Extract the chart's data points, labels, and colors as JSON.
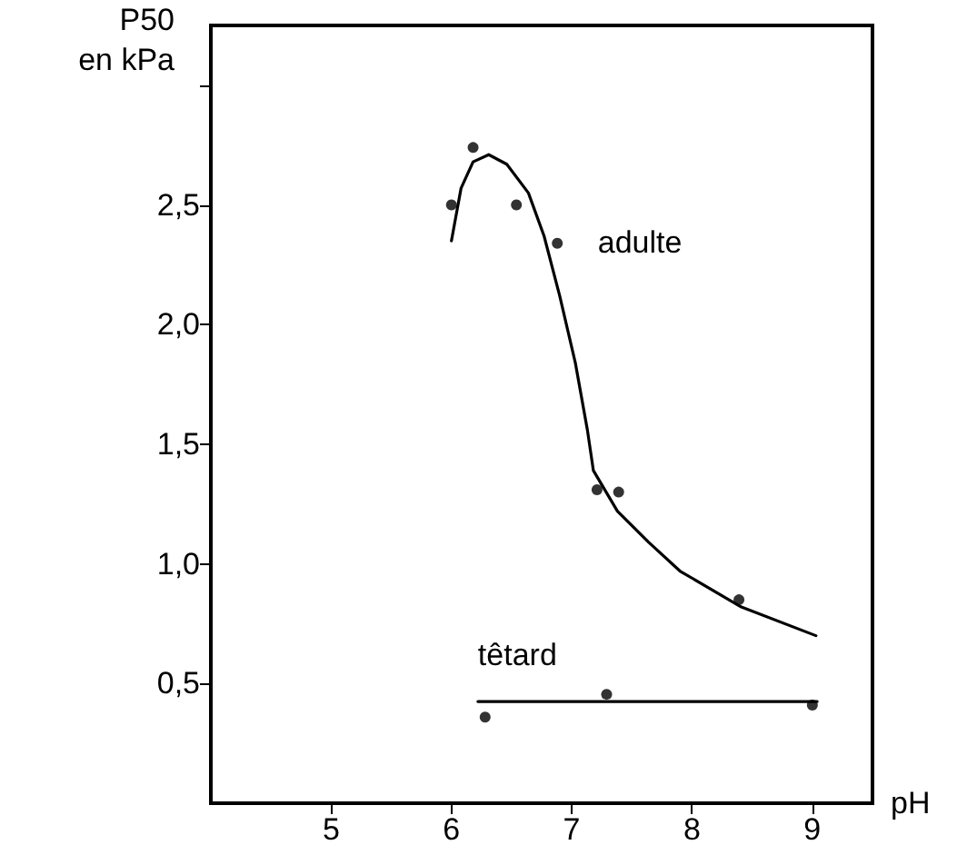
{
  "chart_data": {
    "type": "line",
    "xlabel": "pH",
    "ylabel": "P50\nen kPa",
    "xlim": [
      4,
      9.5
    ],
    "xticks": [
      5,
      6,
      7,
      8,
      9
    ],
    "ylim": [
      0,
      3.25
    ],
    "yticks": [
      {
        "value": 0.5,
        "label": "0,5"
      },
      {
        "value": 1,
        "label": "1,0"
      },
      {
        "value": 1.5,
        "label": "1,5"
      },
      {
        "value": 2,
        "label": "2,0"
      },
      {
        "value": 2.5,
        "label": "2,5"
      },
      {
        "value": 3,
        "label": null
      }
    ],
    "grid": false,
    "legend": false,
    "series": [
      {
        "type": "line",
        "name": "adulte",
        "color": "#000000",
        "marker": "none",
        "line_style": "solid",
        "x": [
          6.0,
          6.08,
          6.18,
          6.31,
          6.46,
          6.64,
          6.77,
          6.9,
          7.03,
          7.13,
          7.18,
          7.38,
          7.64,
          7.9,
          8.41,
          9.03
        ],
        "values": [
          2.35,
          2.57,
          2.68,
          2.71,
          2.67,
          2.55,
          2.37,
          2.12,
          1.84,
          1.56,
          1.39,
          1.22,
          1.09,
          0.97,
          0.82,
          0.7
        ]
      },
      {
        "type": "scatter",
        "color": "#000000",
        "marker": "circle",
        "x": [
          6.0,
          6.18,
          6.54,
          6.88,
          7.21,
          7.39,
          8.39
        ],
        "values": [
          2.5,
          2.74,
          2.5,
          2.34,
          1.31,
          1.3,
          0.85
        ]
      },
      {
        "type": "line",
        "name": "têtard",
        "color": "#000000",
        "marker": "none",
        "line_style": "solid",
        "x": [
          6.22,
          9.04
        ],
        "values": [
          0.425,
          0.425
        ]
      },
      {
        "type": "scatter",
        "color": "#000000",
        "marker": "circle",
        "x": [
          6.28,
          7.29,
          9.0
        ],
        "values": [
          0.36,
          0.455,
          0.41
        ]
      }
    ]
  }
}
